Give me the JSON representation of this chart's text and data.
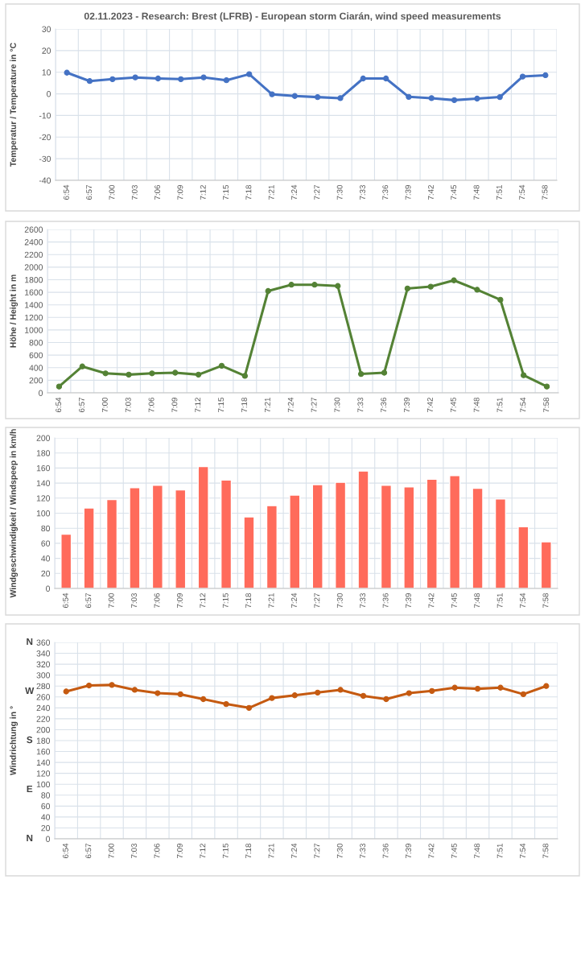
{
  "chart_data": [
    {
      "type": "line",
      "title": "02.11.2023 - Research: Brest (LFRB) - European storm Ciarán, wind speed measurements",
      "ylabel": "Temperatur / Temperature in °C",
      "categories": [
        "6:54",
        "6:57",
        "7:00",
        "7:03",
        "7:06",
        "7:09",
        "7:12",
        "7:15",
        "7:18",
        "7:21",
        "7:24",
        "7:27",
        "7:30",
        "7:33",
        "7:36",
        "7:39",
        "7:42",
        "7:45",
        "7:48",
        "7:51",
        "7:54",
        "7:58"
      ],
      "series": [
        {
          "color": "#4472c4",
          "values": [
            9.8,
            5.9,
            6.8,
            7.6,
            7.1,
            6.8,
            7.6,
            6.3,
            9.1,
            -0.2,
            -1.0,
            -1.5,
            -2.0,
            7.1,
            7.1,
            -1.4,
            -2.0,
            -2.9,
            -2.2,
            -1.5,
            8.0,
            8.6
          ]
        }
      ],
      "ylim": [
        -40,
        30
      ],
      "yticks": [
        -40,
        -30,
        -20,
        -10,
        0,
        10,
        20,
        30
      ],
      "grid": true,
      "marker": "circle"
    },
    {
      "type": "line",
      "ylabel": "Höhe / Height in m",
      "categories": [
        "6:54",
        "6:57",
        "7:00",
        "7:03",
        "7:06",
        "7:09",
        "7:12",
        "7:15",
        "7:18",
        "7:21",
        "7:24",
        "7:27",
        "7:30",
        "7:33",
        "7:36",
        "7:39",
        "7:42",
        "7:45",
        "7:48",
        "7:51",
        "7:54",
        "7:58"
      ],
      "series": [
        {
          "color": "#548235",
          "values": [
            100,
            420,
            310,
            290,
            310,
            320,
            290,
            430,
            270,
            1620,
            1720,
            1720,
            1700,
            300,
            320,
            1660,
            1690,
            1790,
            1640,
            1480,
            280,
            100
          ]
        }
      ],
      "ylim": [
        0,
        2600
      ],
      "yticks": [
        0,
        200,
        400,
        600,
        800,
        1000,
        1200,
        1400,
        1600,
        1800,
        2000,
        2200,
        2400,
        2600
      ],
      "grid": true,
      "marker": "circle"
    },
    {
      "type": "bar",
      "ylabel": "Windgeschwindigkeit / Windspeep in km/h",
      "categories": [
        "6:54",
        "6:57",
        "7:00",
        "7:03",
        "7:06",
        "7:09",
        "7:12",
        "7:15",
        "7:18",
        "7:21",
        "7:24",
        "7:27",
        "7:30",
        "7:33",
        "7:36",
        "7:39",
        "7:42",
        "7:45",
        "7:48",
        "7:51",
        "7:54",
        "7:58"
      ],
      "series": [
        {
          "color": "#ff6b5b",
          "values": [
            72,
            107,
            118,
            134,
            137,
            131,
            162,
            144,
            95,
            110,
            124,
            138,
            141,
            156,
            137,
            135,
            145,
            150,
            133,
            119,
            82,
            62
          ]
        }
      ],
      "ylim": [
        0,
        200
      ],
      "yticks": [
        0,
        20,
        40,
        60,
        80,
        100,
        120,
        140,
        160,
        180,
        200
      ],
      "grid": true
    },
    {
      "type": "line",
      "ylabel": "Windrichtung in °",
      "categories": [
        "6:54",
        "6:57",
        "7:00",
        "7:03",
        "7:06",
        "7:09",
        "7:12",
        "7:15",
        "7:18",
        "7:21",
        "7:24",
        "7:27",
        "7:30",
        "7:33",
        "7:36",
        "7:39",
        "7:42",
        "7:45",
        "7:48",
        "7:51",
        "7:54",
        "7:58"
      ],
      "series": [
        {
          "color": "#c55a11",
          "values": [
            270,
            281,
            282,
            273,
            267,
            265,
            256,
            247,
            240,
            258,
            263,
            268,
            273,
            262,
            256,
            267,
            271,
            277,
            275,
            277,
            265,
            280
          ]
        }
      ],
      "ylim": [
        0,
        360
      ],
      "yticks": [
        0,
        20,
        40,
        60,
        80,
        100,
        120,
        140,
        160,
        180,
        200,
        220,
        240,
        260,
        280,
        300,
        320,
        340,
        360
      ],
      "grid": true,
      "marker": "circle",
      "annotations": [
        "N",
        "W",
        "S",
        "E",
        "N"
      ]
    }
  ]
}
